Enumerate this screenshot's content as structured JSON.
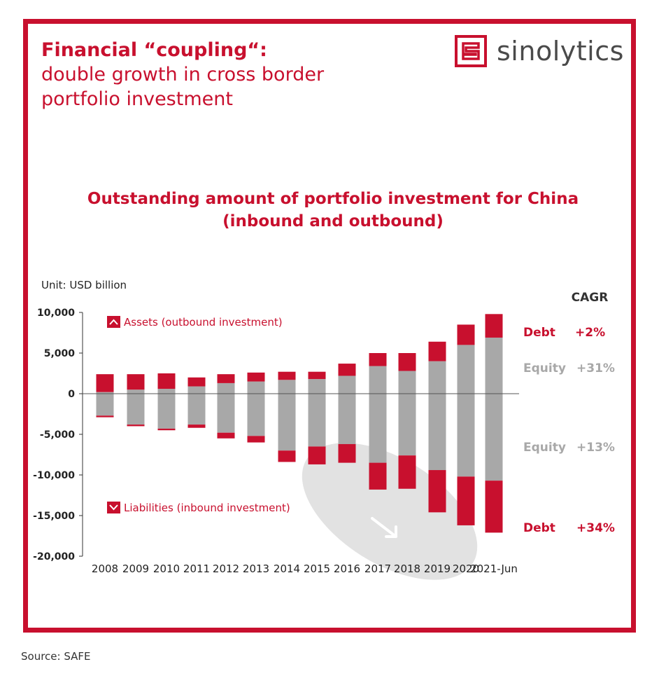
{
  "header": {
    "title_bold": "Financial “coupling“:",
    "title_line2": "double growth in cross border",
    "title_line3": "portfolio investment",
    "brand": "sinolytics"
  },
  "chart_title": {
    "line1": "Outstanding amount of portfolio investment for China",
    "line2": "(inbound and outbound)"
  },
  "unit_label": "Unit: USD billion",
  "source": "Source: SAFE",
  "colors": {
    "accent": "#c8102e",
    "equity": "#a8a8a8",
    "debt": "#c8102e"
  },
  "chart_data": {
    "type": "bar",
    "stacked": true,
    "categories": [
      "2008",
      "2009",
      "2010",
      "2011",
      "2012",
      "2013",
      "2014",
      "2015",
      "2016",
      "2017",
      "2018",
      "2019",
      "2020",
      "2021-Jun"
    ],
    "series": [
      {
        "name": "Assets equity",
        "values": [
          200,
          500,
          600,
          900,
          1300,
          1500,
          1700,
          1800,
          2200,
          3400,
          2800,
          4000,
          6000,
          6900
        ]
      },
      {
        "name": "Assets debt",
        "values": [
          2200,
          1900,
          1900,
          1100,
          1100,
          1100,
          1000,
          900,
          1500,
          1600,
          2200,
          2400,
          2500,
          2900
        ]
      },
      {
        "name": "Liabilities equity",
        "values": [
          -2700,
          -3800,
          -4300,
          -3800,
          -4800,
          -5200,
          -7000,
          -6500,
          -6200,
          -8500,
          -7600,
          -9400,
          -10200,
          -10700
        ]
      },
      {
        "name": "Liabilities debt",
        "values": [
          -200,
          -200,
          -200,
          -400,
          -700,
          -800,
          -1400,
          -2200,
          -2300,
          -3300,
          -4100,
          -5200,
          -6000,
          -6400
        ]
      }
    ],
    "y_ticks": [
      "10,000",
      "5,000",
      "0",
      "-5,000",
      "-10,000",
      "-15,000",
      "-20,000"
    ],
    "ylim": [
      -20000,
      10000
    ],
    "legend": {
      "assets": "Assets (outbound investment)",
      "liabilities": "Liabilities (inbound investment)"
    },
    "cagr": {
      "header": "CAGR",
      "assets_debt": {
        "label": "Debt",
        "value": "+2%"
      },
      "assets_equity": {
        "label": "Equity",
        "value": "+31%"
      },
      "liabilities_equity": {
        "label": "Equity",
        "value": "+13%"
      },
      "liabilities_debt": {
        "label": "Debt",
        "value": "+34%"
      }
    }
  }
}
